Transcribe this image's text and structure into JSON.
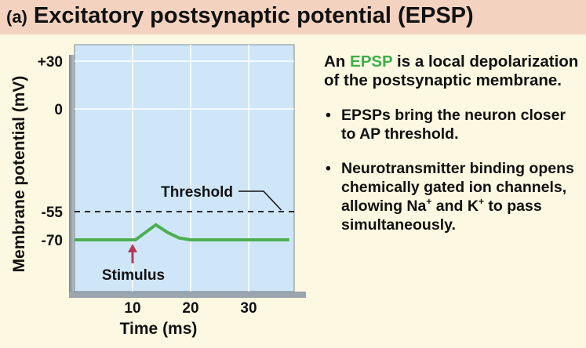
{
  "header": {
    "label": "(a)",
    "title": "Excitatory postsynaptic potential (EPSP)"
  },
  "chart_data": {
    "type": "line",
    "xlabel": "Time (ms)",
    "ylabel": "Membrane potential (mV)",
    "x_ticks": [
      "10",
      "20",
      "30"
    ],
    "y_ticks": [
      "+30",
      "0",
      "-55",
      "-70"
    ],
    "xlim": [
      0,
      37
    ],
    "threshold": {
      "label": "Threshold",
      "value": -55
    },
    "stimulus": {
      "label": "Stimulus",
      "time": 10
    },
    "series": [
      {
        "x": [
          0,
          10.5,
          14,
          16,
          18,
          20,
          37
        ],
        "y": [
          -70,
          -70,
          -62,
          -66,
          -69,
          -70,
          -70
        ]
      }
    ],
    "colors": {
      "trace": "#4caf50",
      "background": "#cfe6f8",
      "threshold_line": "#111111",
      "stimulus_arrow": "#b5395a"
    }
  },
  "panel": {
    "lead_pre": "An ",
    "lead_highlight": "EPSP",
    "lead_post": " is a local depolarization of the postsynaptic membrane.",
    "bullet_mark": "•",
    "bullet1": "EPSPs bring the neuron closer to AP threshold.",
    "bullet2_a": "Neurotransmitter binding opens chemically gated ion channels, allowing Na",
    "bullet2_sup1": "+",
    "bullet2_b": " and K",
    "bullet2_sup2": "+",
    "bullet2_c": " to pass simultaneously."
  }
}
